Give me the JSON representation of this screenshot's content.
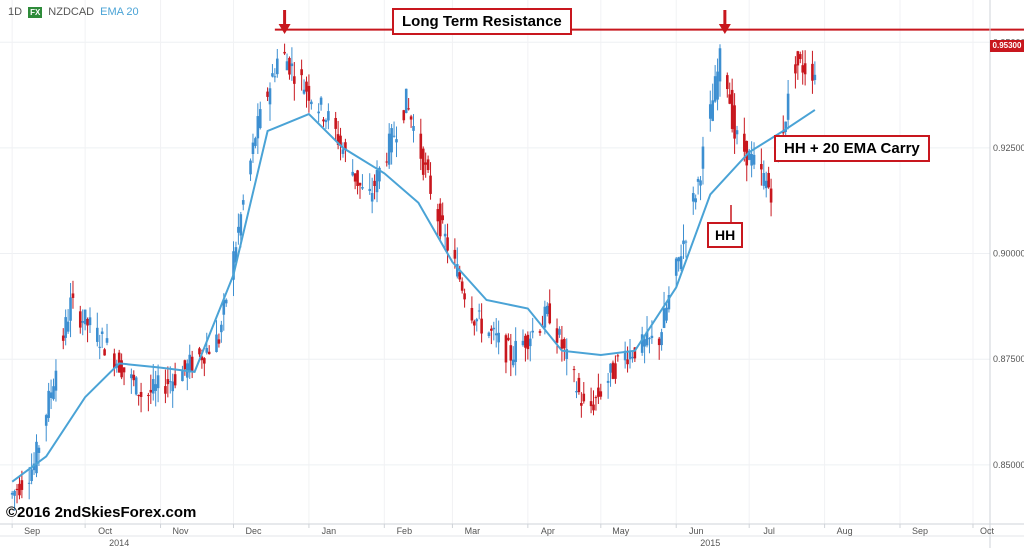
{
  "header": {
    "timeframe": "1D",
    "fx_badge": "FX",
    "symbol": "NZDCAD",
    "indicator": "EMA 20"
  },
  "annotations": {
    "resistance": "Long Term Resistance",
    "hh_label": "HH",
    "carry_label": "HH + 20 EMA Carry",
    "price_tag": "0.95300",
    "copyright": "©2016 2ndSkiesForex.com"
  },
  "colors": {
    "up": "#3d8fd1",
    "down": "#c8171e",
    "ema": "#4aa3d6",
    "resistance": "#c8171e"
  },
  "chart_data": {
    "type": "line",
    "series": [
      {
        "name": "EMA 20",
        "x": [
          "2014-09-01",
          "2014-09-15",
          "2014-10-01",
          "2014-10-15",
          "2014-11-01",
          "2014-11-15",
          "2014-12-01",
          "2014-12-15",
          "2015-01-01",
          "2015-01-15",
          "2015-02-01",
          "2015-02-15",
          "2015-03-01",
          "2015-03-15",
          "2015-04-01",
          "2015-04-15",
          "2015-05-01",
          "2015-05-15",
          "2015-06-01",
          "2015-06-15",
          "2015-07-01",
          "2015-07-15",
          "2015-07-28"
        ],
        "values": [
          0.846,
          0.852,
          0.866,
          0.874,
          0.873,
          0.872,
          0.895,
          0.929,
          0.933,
          0.925,
          0.919,
          0.912,
          0.898,
          0.889,
          0.887,
          0.877,
          0.876,
          0.877,
          0.892,
          0.914,
          0.924,
          0.929,
          0.934
        ]
      }
    ],
    "price_path": {
      "x": [
        "2014-09-01",
        "2014-09-10",
        "2014-09-25",
        "2014-10-10",
        "2014-10-25",
        "2014-11-10",
        "2014-11-25",
        "2014-12-10",
        "2014-12-20",
        "2015-01-10",
        "2015-01-25",
        "2015-02-10",
        "2015-02-25",
        "2015-03-10",
        "2015-03-25",
        "2015-04-10",
        "2015-04-25",
        "2015-05-10",
        "2015-05-25",
        "2015-06-10",
        "2015-06-20",
        "2015-06-25",
        "2015-07-10",
        "2015-07-20",
        "2015-07-28"
      ],
      "values": [
        0.843,
        0.85,
        0.888,
        0.878,
        0.866,
        0.872,
        0.88,
        0.928,
        0.948,
        0.931,
        0.912,
        0.936,
        0.905,
        0.885,
        0.876,
        0.886,
        0.862,
        0.876,
        0.88,
        0.917,
        0.949,
        0.928,
        0.915,
        0.945,
        0.943
      ]
    },
    "resistance": 0.953,
    "ylim": [
      0.836,
      0.96
    ],
    "y_ticks": [
      0.85,
      0.875,
      0.9,
      0.925,
      0.95
    ],
    "y_tick_labels": [
      "0.85000",
      "0.87500",
      "0.90000",
      "0.92500",
      "0.95000"
    ],
    "x_ticks": [
      "Sep",
      "Oct",
      "Nov",
      "Dec",
      "Jan",
      "Feb",
      "Mar",
      "Apr",
      "May",
      "Jun",
      "Jul",
      "Aug",
      "Sep",
      "Oct"
    ],
    "x_tick_dates": [
      "2014-09-01",
      "2014-10-01",
      "2014-11-01",
      "2014-12-01",
      "2015-01-01",
      "2015-02-01",
      "2015-03-01",
      "2015-04-01",
      "2015-05-01",
      "2015-06-01",
      "2015-07-01",
      "2015-08-01",
      "2015-09-01",
      "2015-10-01"
    ],
    "year_labels": [
      "2014",
      "2015"
    ],
    "year_dates": [
      "2014-10-15",
      "2015-06-15"
    ],
    "grid": true,
    "legend": "top-left"
  }
}
